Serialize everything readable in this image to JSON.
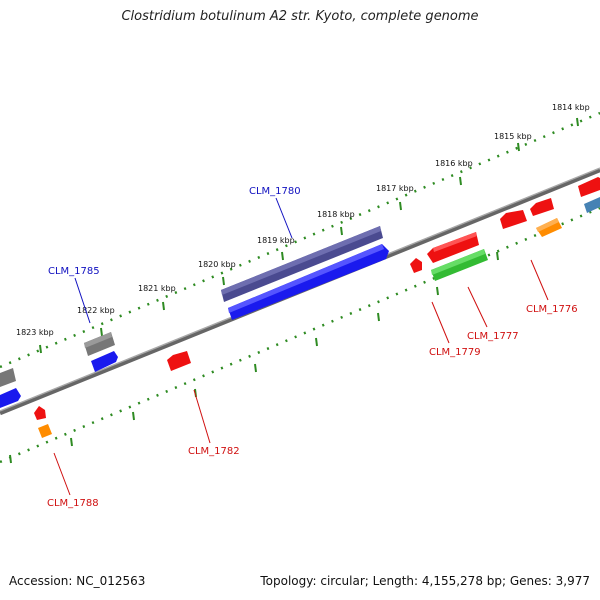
{
  "title": "Clostridium botulinum A2 str. Kyoto, complete genome",
  "footer": {
    "accession": "Accession: NC_012563",
    "stats": "Topology: circular; Length: 4,155,278 bp; Genes: 3,977"
  },
  "scale_labels": [
    "1814 kbp",
    "1815 kbp",
    "1816 kbp",
    "1817 kbp",
    "1818 kbp",
    "1819 kbp",
    "1820 kbp",
    "1821 kbp",
    "1822 kbp",
    "1823 kbp"
  ],
  "gene_labels": {
    "clm_1780": "CLM_1780",
    "clm_1785": "CLM_1785",
    "clm_1776": "CLM_1776",
    "clm_1777": "CLM_1777",
    "clm_1779": "CLM_1779",
    "clm_1782": "CLM_1782",
    "clm_1788": "CLM_1788"
  },
  "colors": {
    "backbone": "#808080",
    "scale_ticks": "#2e8b22",
    "label_plus": "#1010c0",
    "label_minus": "#d01010",
    "gene_blue": "#1a1aee",
    "gene_red": "#ee1111",
    "gene_green": "#33bb33",
    "gene_orange": "#ff8c00",
    "gene_gray": "#777777",
    "gene_indigo": "#4a4a90",
    "gene_steel": "#4682b4"
  }
}
